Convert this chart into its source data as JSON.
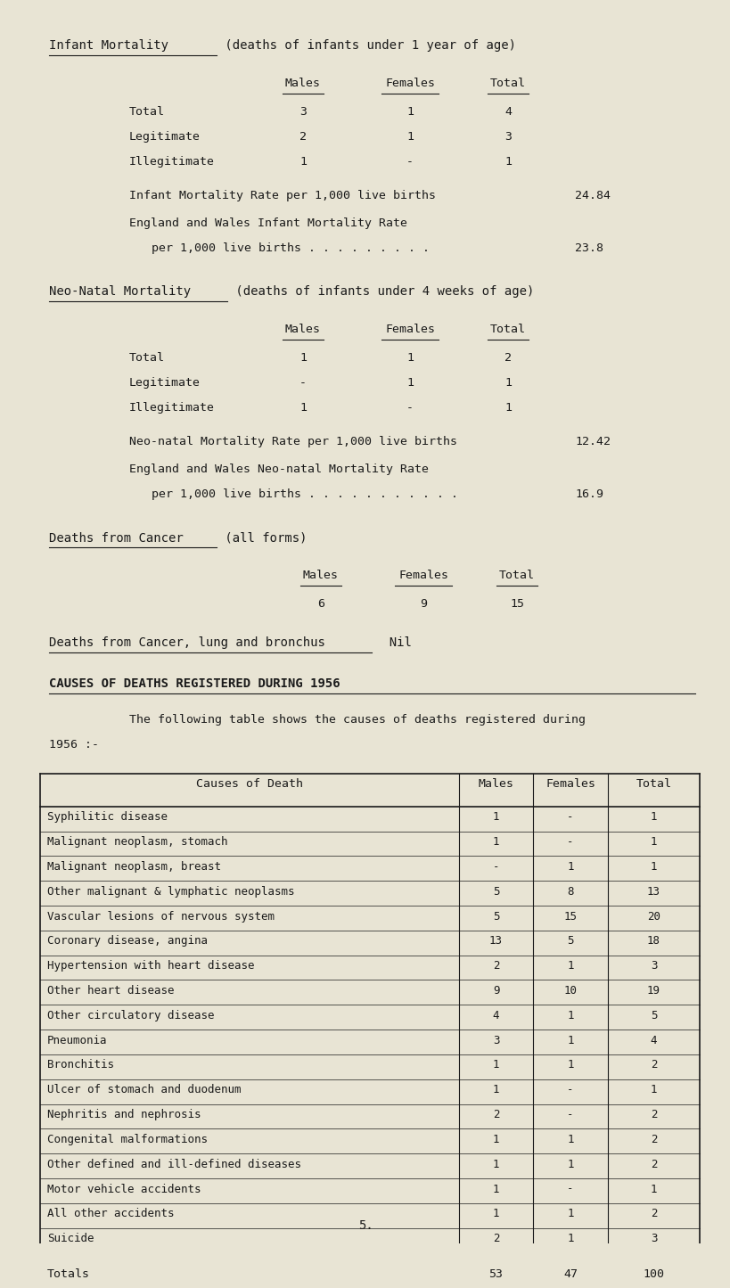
{
  "bg_color": "#e8e4d4",
  "text_color": "#1a1a1a",
  "page_number": "5.",
  "section1_title_underline": "Infant Mortality",
  "section1_title_rest": " (deaths of infants under 1 year of age)",
  "section1_rows": [
    [
      "Total",
      "3",
      "1",
      "4"
    ],
    [
      "Legitimate",
      "2",
      "1",
      "3"
    ],
    [
      "Illegitimate",
      "1",
      "-",
      "1"
    ]
  ],
  "section1_rate1_label": "Infant Mortality Rate per 1,000 live births",
  "section1_rate1_value": "24.84",
  "section1_rate2_label": "England and Wales Infant Mortality Rate",
  "section1_rate2_sub": "per 1,000 live births . . . . . . . . .",
  "section1_rate2_value": "23.8",
  "section2_title_underline": "Neo-Natal Mortality",
  "section2_title_rest": " (deaths of infants under 4 weeks of age)",
  "section2_rows": [
    [
      "Total",
      "1",
      "1",
      "2"
    ],
    [
      "Legitimate",
      "-",
      "1",
      "1"
    ],
    [
      "Illegitimate",
      "1",
      "-",
      "1"
    ]
  ],
  "section2_rate1_label": "Neo-natal Mortality Rate per 1,000 live births",
  "section2_rate1_value": "12.42",
  "section2_rate2_label": "England and Wales Neo-natal Mortality Rate",
  "section2_rate2_sub": "per 1,000 live births . . . . . . . . . . .",
  "section2_rate2_value": "16.9",
  "section3_title_underline": "Deaths from Cancer",
  "section3_title_rest": " (all forms)",
  "section3_row": [
    "6",
    "9",
    "15"
  ],
  "section4_title_underline": "Deaths from Cancer, lung and bronchus",
  "section4_value": "Nil",
  "section5_title": "CAUSES OF DEATHS REGISTERED DURING 1956",
  "section5_intro": "The following table shows the causes of deaths registered during",
  "section5_intro2": "1956 :-",
  "table_rows": [
    [
      "Syphilitic disease",
      "1",
      "-",
      "1"
    ],
    [
      "Malignant neoplasm, stomach",
      "1",
      "-",
      "1"
    ],
    [
      "Malignant neoplasm, breast",
      "-",
      "1",
      "1"
    ],
    [
      "Other malignant & lymphatic neoplasms",
      "5",
      "8",
      "13"
    ],
    [
      "Vascular lesions of nervous system",
      "5",
      "15",
      "20"
    ],
    [
      "Coronary disease, angina",
      "13",
      "5",
      "18"
    ],
    [
      "Hypertension with heart disease",
      "2",
      "1",
      "3"
    ],
    [
      "Other heart disease",
      "9",
      "10",
      "19"
    ],
    [
      "Other circulatory disease",
      "4",
      "1",
      "5"
    ],
    [
      "Pneumonia",
      "3",
      "1",
      "4"
    ],
    [
      "Bronchitis",
      "1",
      "1",
      "2"
    ],
    [
      "Ulcer of stomach and duodenum",
      "1",
      "-",
      "1"
    ],
    [
      "Nephritis and nephrosis",
      "2",
      "-",
      "2"
    ],
    [
      "Congenital malformations",
      "1",
      "1",
      "2"
    ],
    [
      "Other defined and ill-defined diseases",
      "1",
      "1",
      "2"
    ],
    [
      "Motor vehicle accidents",
      "1",
      "-",
      "1"
    ],
    [
      "All other accidents",
      "1",
      "1",
      "2"
    ],
    [
      "Suicide",
      "2",
      "1",
      "3"
    ]
  ],
  "table_totals": [
    "Totals",
    "53",
    "47",
    "100"
  ]
}
